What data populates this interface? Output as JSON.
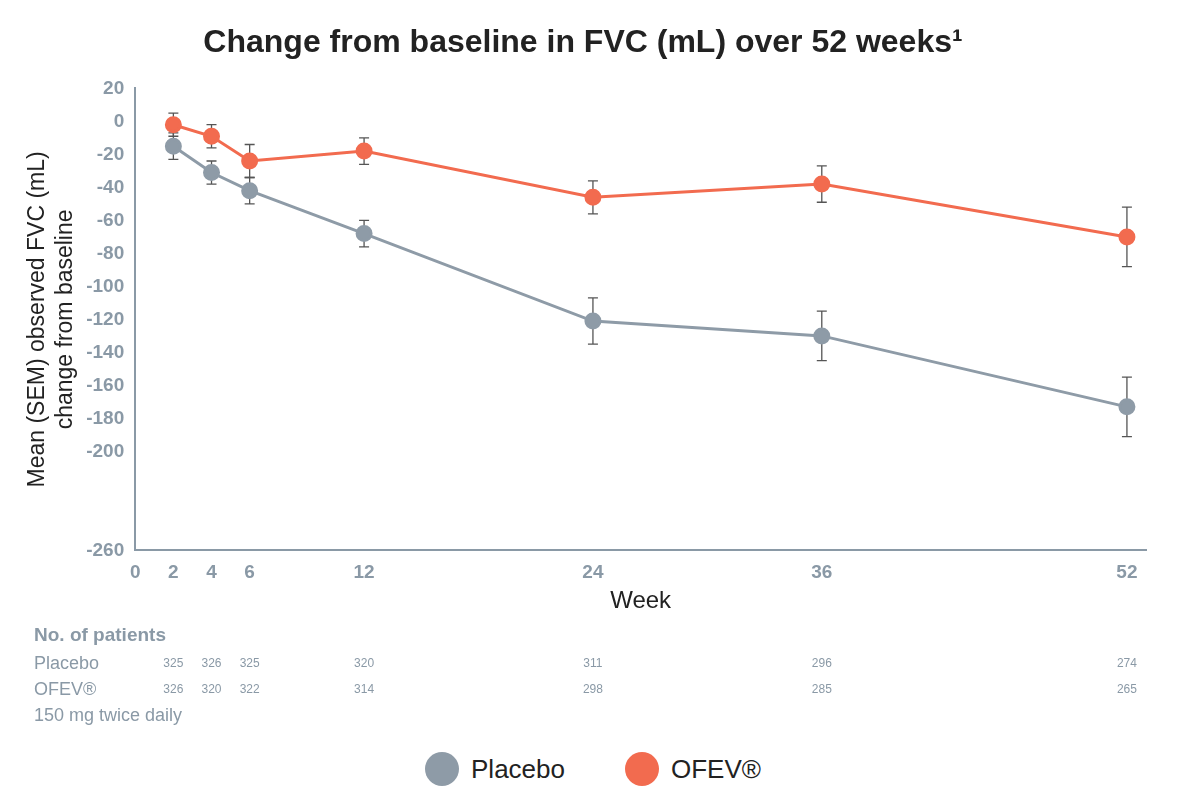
{
  "chart_data": {
    "type": "line",
    "title": "Change from baseline in FVC (mL) over 52 weeks¹",
    "x_label": "Week",
    "y_label": [
      "Mean (SEM) observed FVC (mL)",
      "change from baseline"
    ],
    "x": [
      2,
      4,
      6,
      12,
      24,
      36,
      52
    ],
    "xlim": [
      0,
      53
    ],
    "xticks": [
      0,
      2,
      4,
      6,
      12,
      24,
      36,
      52
    ],
    "ylim": [
      -260,
      20
    ],
    "yticks": [
      -260,
      -200,
      -180,
      -160,
      -140,
      -120,
      -100,
      -80,
      -60,
      -40,
      -20,
      0,
      20
    ],
    "grid": false,
    "legend": "bottom",
    "marker": "circle",
    "series": [
      {
        "name": "Placebo",
        "color": "#8e9ba7",
        "values": [
          -15,
          -31,
          -42,
          -68,
          -121,
          -130,
          -173
        ],
        "sem": [
          8,
          7,
          8,
          8,
          14,
          15,
          18
        ]
      },
      {
        "name": "OFEV®",
        "color": "#f26b4f",
        "values": [
          -2,
          -9,
          -24,
          -18,
          -46,
          -38,
          -70
        ],
        "sem": [
          7,
          7,
          10,
          8,
          10,
          11,
          18
        ]
      }
    ],
    "patients": {
      "title": "No. of patients",
      "rows": [
        {
          "label": "Placebo",
          "values": [
            325,
            326,
            325,
            320,
            311,
            296,
            274
          ]
        },
        {
          "label": "OFEV®",
          "sublabel": "150 mg twice daily",
          "values": [
            326,
            320,
            322,
            314,
            298,
            285,
            265
          ]
        }
      ]
    }
  }
}
